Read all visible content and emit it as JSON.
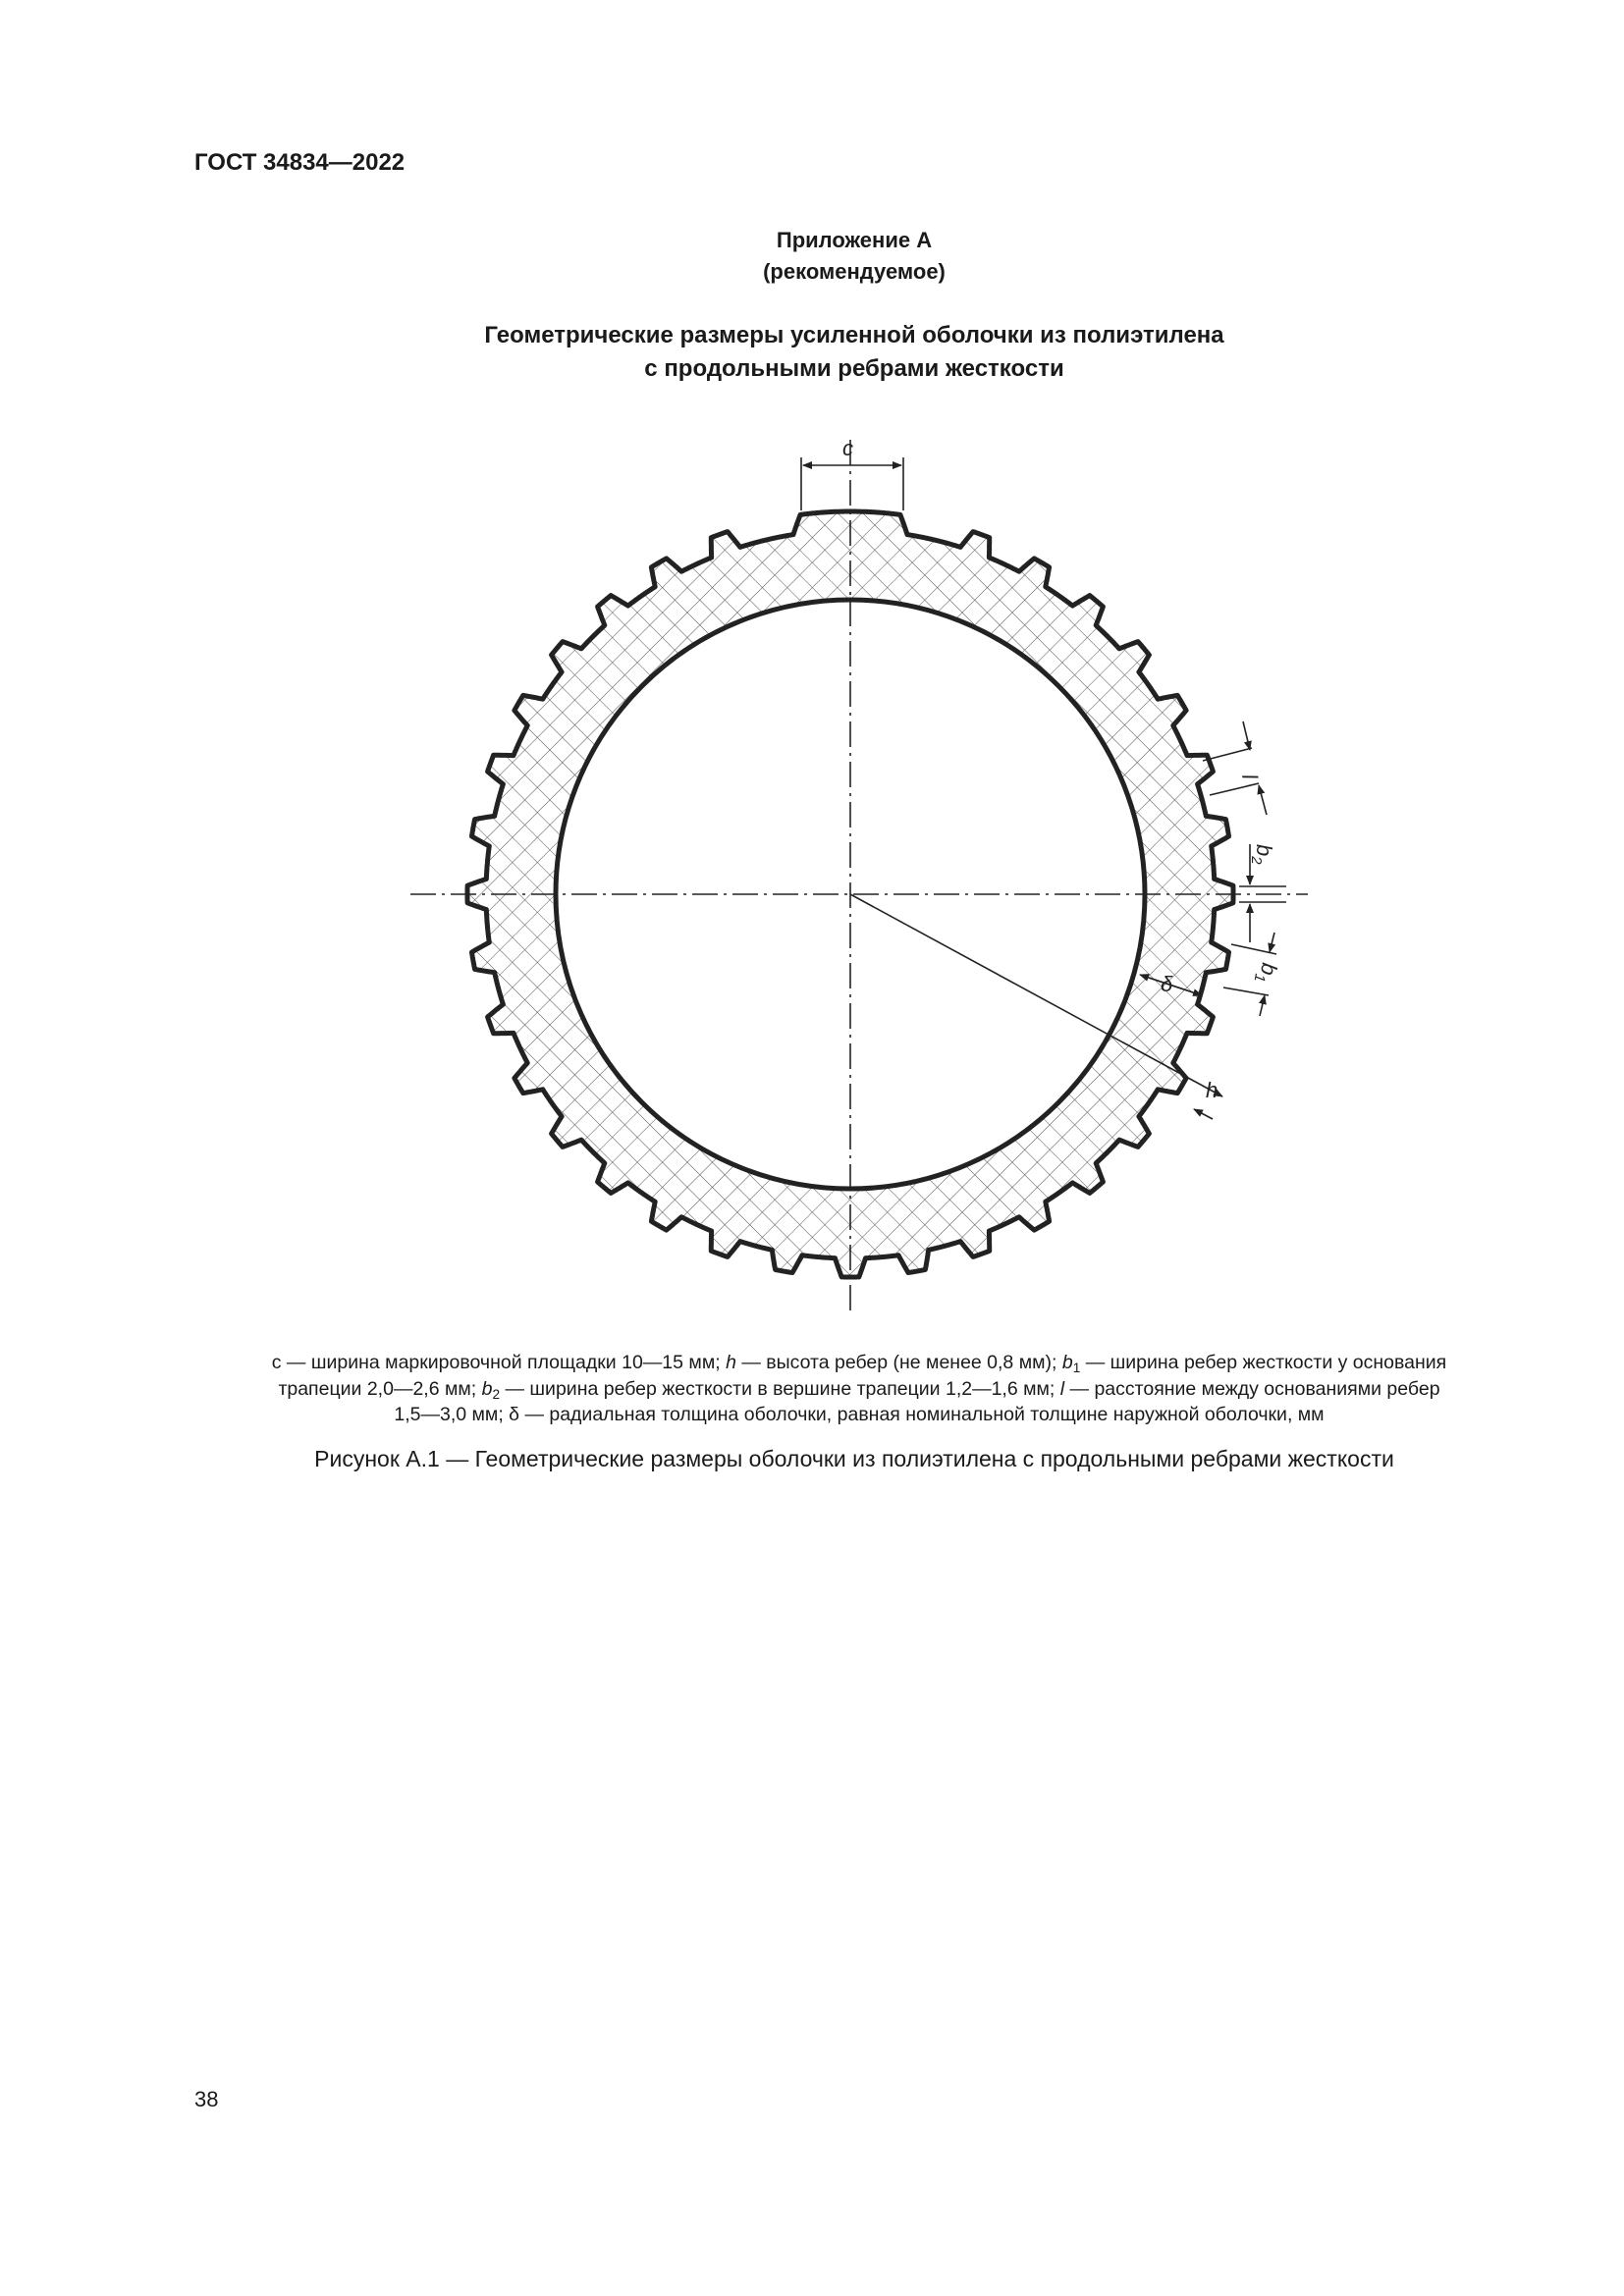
{
  "header": {
    "standard": "ГОСТ 34834—2022"
  },
  "appendix": {
    "title": "Приложение А",
    "status": "(рекомендуемое)"
  },
  "title": {
    "line1": "Геометрические размеры усиленной оболочки из полиэтилена",
    "line2": "с продольными ребрами жесткости"
  },
  "drawing": {
    "labels": {
      "c": "c",
      "l": "l",
      "b2_main": "b",
      "b2_sub": "2",
      "b1_main": "b",
      "b1_sub": "1",
      "delta": "δ",
      "h": "h"
    },
    "rib_count": 36,
    "hatch": "crosshatch",
    "line_color": "#222222"
  },
  "legend": {
    "lines": [
      [
        {
          "t": "c — ширина маркировочной площадки 10—15 мм; "
        },
        {
          "t": "h",
          "s": "i"
        },
        {
          "t": " — высота ребер (не менее 0,8 мм); "
        },
        {
          "t": "b",
          "s": "i"
        },
        {
          "t": "1",
          "s": "sub"
        },
        {
          "t": " — ширина ребер жесткости у основания"
        }
      ],
      [
        {
          "t": "трапеции 2,0—2,6 мм; "
        },
        {
          "t": "b",
          "s": "i"
        },
        {
          "t": "2",
          "s": "sub"
        },
        {
          "t": " — ширина ребер жесткости в вершине трапеции 1,2—1,6 мм; "
        },
        {
          "t": "l",
          "s": "i"
        },
        {
          "t": " — расстояние между основаниями ребер"
        }
      ],
      [
        {
          "t": "1,5—3,0 мм; δ — радиальная толщина оболочки, равная номинальной толщине наружной оболочки, мм"
        }
      ]
    ]
  },
  "figure_caption": "Рисунок А.1 — Геометрические размеры оболочки из полиэтилена с продольными ребрами жесткости",
  "page_number": "38"
}
